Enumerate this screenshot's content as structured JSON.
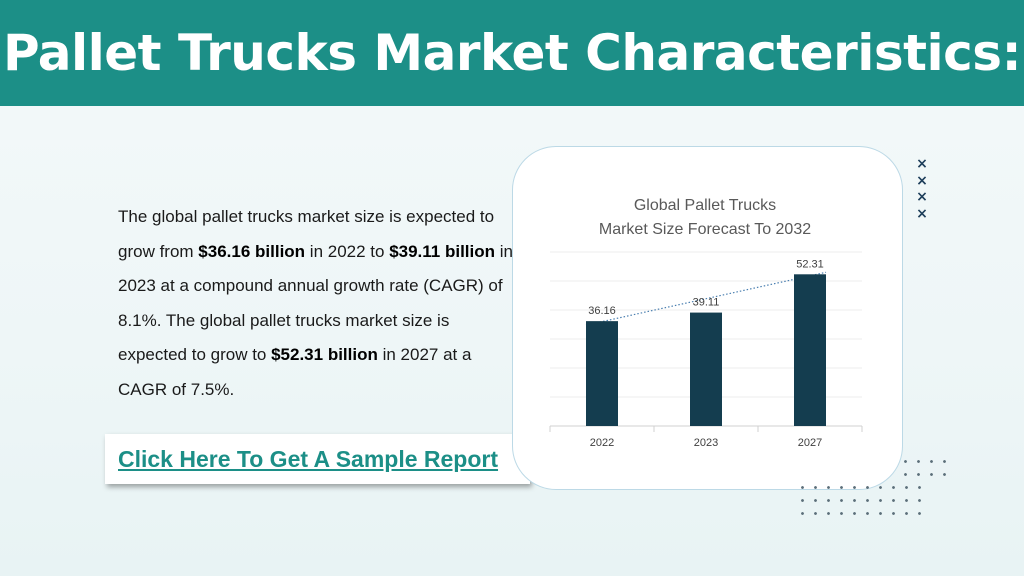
{
  "header": {
    "title": "Pallet Trucks Market Characteristics:"
  },
  "body": {
    "p1": "The global pallet trucks market size is expected to grow from ",
    "b1": "$36.16 billion",
    "p2": " in 2022 to ",
    "b2": "$39.11 billion",
    "p3": " in 2023 at a compound annual growth rate (CAGR) of 8.1%. The global pallet trucks market size is expected to grow to ",
    "b3": "$52.31 billion",
    "p4": " in 2027 at a CAGR of 7.5%."
  },
  "cta": {
    "label": "Click Here To Get A Sample Report"
  },
  "decor": {
    "x_mark": "×"
  },
  "colors": {
    "header": "#1c8f87",
    "bar": "#143d4f",
    "link": "#1c8f87",
    "accent_x": "#1d3e5a"
  },
  "chart_data": {
    "type": "bar",
    "title_line1": "Global Pallet Trucks",
    "title_line2": "Market Size Forecast To 2032",
    "categories": [
      "2022",
      "2023",
      "2027"
    ],
    "values": [
      36.16,
      39.11,
      52.31
    ],
    "value_labels": [
      "36.16",
      "39.11",
      "52.31"
    ],
    "ylim": [
      0,
      60
    ],
    "grid": true,
    "trendline": "dotted",
    "legend": "none"
  }
}
